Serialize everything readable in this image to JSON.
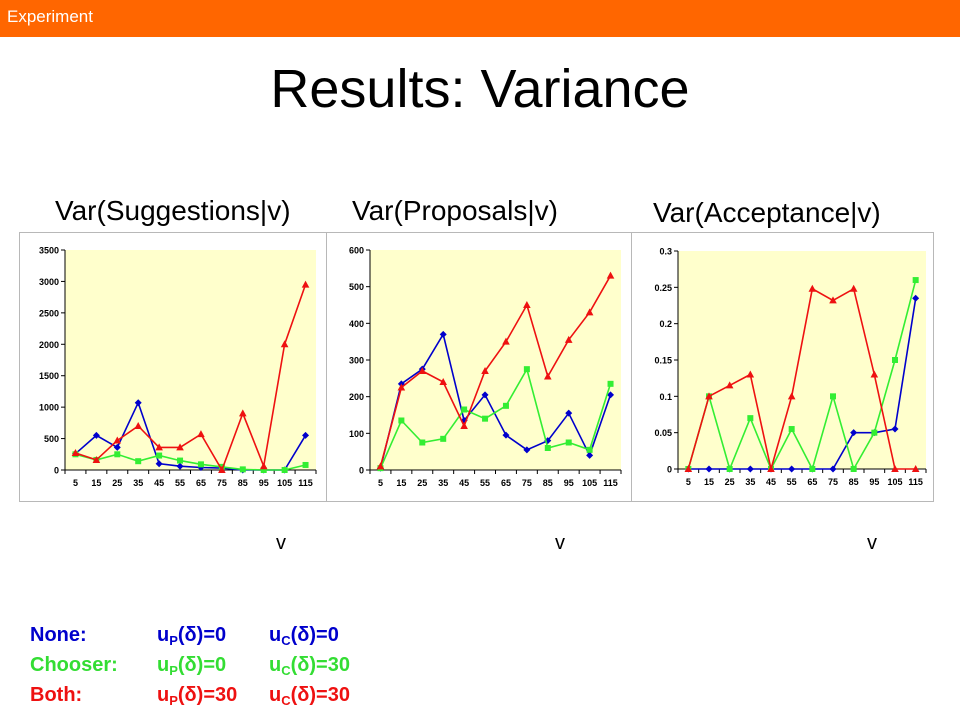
{
  "header": {
    "section": "Experiment",
    "title": "Results: Variance"
  },
  "colors": {
    "bar": "#ff6600",
    "plot_bg": "#ffffcc",
    "none": "#0000cc",
    "chooser": "#33ee33",
    "both": "#ee1111"
  },
  "chart_titles": [
    "Var(Suggestions|v)",
    "Var(Proposals|v)",
    "Var(Acceptance|v)"
  ],
  "chart_data": [
    {
      "type": "line",
      "title": "",
      "xlabel": "v",
      "ylabel": "",
      "ylim": [
        0,
        3500
      ],
      "yticks": [
        0,
        500,
        1000,
        1500,
        2000,
        2500,
        3000,
        3500
      ],
      "ytick_labels": [
        "0",
        "500",
        "1000",
        "1500",
        "2000",
        "2500",
        "3000",
        "3500"
      ],
      "x": [
        "5",
        "15",
        "25",
        "35",
        "45",
        "55",
        "65",
        "75",
        "85",
        "95",
        "105",
        "115"
      ],
      "series": [
        {
          "key": "none",
          "marker": "diamond",
          "values": [
            260,
            550,
            360,
            1070,
            100,
            60,
            40,
            30,
            0,
            0,
            0,
            550
          ]
        },
        {
          "key": "chooser",
          "marker": "square",
          "values": [
            250,
            160,
            250,
            140,
            230,
            150,
            90,
            50,
            10,
            0,
            0,
            80
          ]
        },
        {
          "key": "both",
          "marker": "triangle",
          "values": [
            270,
            160,
            470,
            700,
            360,
            360,
            570,
            0,
            900,
            60,
            2000,
            2950
          ]
        }
      ]
    },
    {
      "type": "line",
      "title": "",
      "xlabel": "v",
      "ylabel": "",
      "ylim": [
        0,
        600
      ],
      "yticks": [
        0,
        100,
        200,
        300,
        400,
        500,
        600
      ],
      "ytick_labels": [
        "0",
        "100",
        "200",
        "300",
        "400",
        "500",
        "600"
      ],
      "x": [
        "5",
        "15",
        "25",
        "35",
        "45",
        "55",
        "65",
        "75",
        "85",
        "95",
        "105",
        "115"
      ],
      "series": [
        {
          "key": "none",
          "marker": "diamond",
          "values": [
            5,
            235,
            275,
            370,
            135,
            205,
            95,
            55,
            80,
            155,
            40,
            205
          ]
        },
        {
          "key": "chooser",
          "marker": "square",
          "values": [
            5,
            135,
            75,
            85,
            165,
            140,
            175,
            275,
            60,
            75,
            55,
            235
          ]
        },
        {
          "key": "both",
          "marker": "triangle",
          "values": [
            10,
            225,
            270,
            240,
            120,
            270,
            350,
            450,
            255,
            355,
            430,
            530
          ]
        }
      ]
    },
    {
      "type": "line",
      "title": "",
      "xlabel": "v",
      "ylabel": "",
      "ylim": [
        0,
        0.3
      ],
      "yticks": [
        0,
        0.05,
        0.1,
        0.15,
        0.2,
        0.25,
        0.3
      ],
      "ytick_labels": [
        "0",
        "0.05",
        "0.1",
        "0.15",
        "0.2",
        "0.25",
        "0.3"
      ],
      "x": [
        "5",
        "15",
        "25",
        "35",
        "45",
        "55",
        "65",
        "75",
        "85",
        "95",
        "105",
        "115"
      ],
      "series": [
        {
          "key": "none",
          "marker": "diamond",
          "values": [
            0,
            0,
            0,
            0,
            0,
            0,
            0,
            0,
            0.05,
            0.05,
            0.055,
            0.235
          ]
        },
        {
          "key": "chooser",
          "marker": "square",
          "values": [
            0,
            0.1,
            0,
            0.07,
            0,
            0.055,
            0,
            0.1,
            0,
            0.05,
            0.15,
            0.26
          ]
        },
        {
          "key": "both",
          "marker": "triangle",
          "values": [
            0,
            0.1,
            0.115,
            0.13,
            0,
            0.1,
            0.248,
            0.232,
            0.248,
            0.13,
            0,
            0
          ]
        }
      ]
    }
  ],
  "legend": {
    "none": {
      "name": "None:",
      "up_pre": "u",
      "up_sub": "P",
      "up_post": "(δ)=0",
      "uc_pre": "u",
      "uc_sub": "C",
      "uc_post": "(δ)=0"
    },
    "chooser": {
      "name": "Chooser:",
      "up_pre": "u",
      "up_sub": "P",
      "up_post": "(δ)=0",
      "uc_pre": "u",
      "uc_sub": "C",
      "uc_post": "(δ)=30"
    },
    "both": {
      "name": "Both:",
      "up_pre": "u",
      "up_sub": "P",
      "up_post": "(δ)=30",
      "uc_pre": "u",
      "uc_sub": "C",
      "uc_post": "(δ)=30"
    }
  }
}
